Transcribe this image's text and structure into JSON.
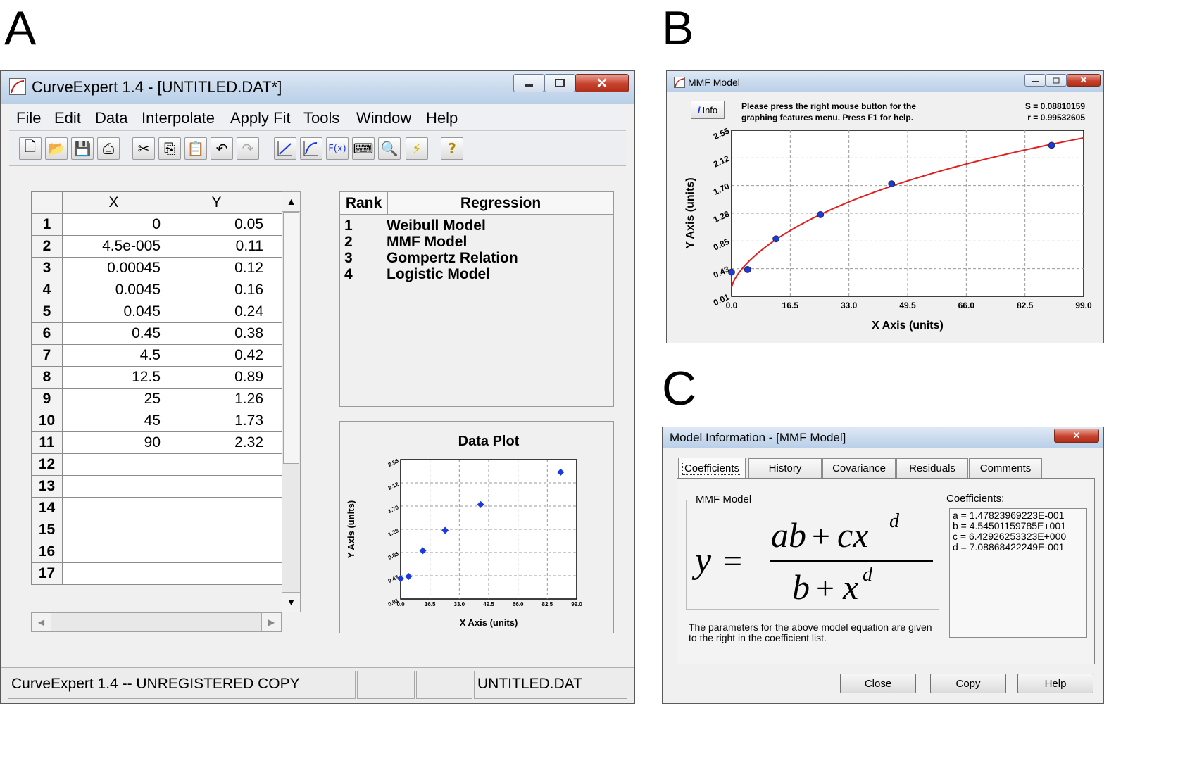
{
  "panels": {
    "a": "A",
    "b": "B",
    "c": "C"
  },
  "curveexpert": {
    "title": "CurveExpert 1.4 - [UNTITLED.DAT*]",
    "menu": [
      "File",
      "Edit",
      "Data",
      "Interpolate",
      "Apply Fit",
      "Tools",
      "Window",
      "Help"
    ],
    "toolbar": [
      "new-doc-icon",
      "open-folder-icon",
      "save-icon",
      "print-icon",
      "cut-icon",
      "copy-icon",
      "paste-icon",
      "undo-icon",
      "redo-icon",
      "linear-fit-icon",
      "curve-fit-icon",
      "function-icon",
      "keyboard-icon",
      "chart-zoom-icon",
      "lightning-icon",
      "help-icon"
    ],
    "grid": {
      "col_x": "X",
      "col_y": "Y",
      "rows": [
        {
          "n": "1",
          "x": "0",
          "y": "0.05"
        },
        {
          "n": "2",
          "x": "4.5e-005",
          "y": "0.11"
        },
        {
          "n": "3",
          "x": "0.00045",
          "y": "0.12"
        },
        {
          "n": "4",
          "x": "0.0045",
          "y": "0.16"
        },
        {
          "n": "5",
          "x": "0.045",
          "y": "0.24"
        },
        {
          "n": "6",
          "x": "0.45",
          "y": "0.38"
        },
        {
          "n": "7",
          "x": "4.5",
          "y": "0.42"
        },
        {
          "n": "8",
          "x": "12.5",
          "y": "0.89"
        },
        {
          "n": "9",
          "x": "25",
          "y": "1.26"
        },
        {
          "n": "10",
          "x": "45",
          "y": "1.73"
        },
        {
          "n": "11",
          "x": "90",
          "y": "2.32"
        },
        {
          "n": "12",
          "x": "",
          "y": ""
        },
        {
          "n": "13",
          "x": "",
          "y": ""
        },
        {
          "n": "14",
          "x": "",
          "y": ""
        },
        {
          "n": "15",
          "x": "",
          "y": ""
        },
        {
          "n": "16",
          "x": "",
          "y": ""
        },
        {
          "n": "17",
          "x": "",
          "y": ""
        }
      ]
    },
    "ranking": {
      "col_rank": "Rank",
      "col_regression": "Regression",
      "rows": [
        {
          "rank": "1",
          "name": "Weibull Model"
        },
        {
          "rank": "2",
          "name": "MMF Model"
        },
        {
          "rank": "3",
          "name": "Gompertz Relation"
        },
        {
          "rank": "4",
          "name": "Logistic Model"
        }
      ]
    },
    "status": {
      "left": "CurveExpert 1.4 -- UNREGISTERED COPY",
      "file": "UNTITLED.DAT"
    }
  },
  "mmf_window": {
    "title": "MMF Model",
    "info_button": "Info",
    "hint": "Please press the right mouse button for the graphing features menu.  Press F1 for help.",
    "s_stat": "S = 0.08810159",
    "r_stat": "r = 0.99532605"
  },
  "model_info": {
    "title": "Model Information - [MMF Model]",
    "tabs": [
      "Coefficients",
      "History",
      "Covariance",
      "Residuals",
      "Comments"
    ],
    "group_label": "MMF Model",
    "coef_header": "Coefficients:",
    "coefficients": [
      "a =  1.47823969223E-001",
      "b =  4.54501159785E+001",
      "c =  6.42926253323E+000",
      "d =  7.08868422249E-001"
    ],
    "description": "The parameters for the above model equation are given to the right in the coefficient list.",
    "buttons": {
      "close": "Close",
      "copy": "Copy",
      "help": "Help"
    }
  },
  "chart_data": [
    {
      "type": "scatter",
      "title": "Data Plot",
      "xlabel": "X Axis (units)",
      "ylabel": "Y Axis (units)",
      "xlim": [
        0.0,
        99.0
      ],
      "ylim": [
        0.01,
        2.55
      ],
      "x_ticks": [
        "0.0",
        "16.5",
        "33.0",
        "49.5",
        "66.0",
        "82.5",
        "99.0"
      ],
      "y_ticks": [
        "0.01",
        "0.43",
        "0.85",
        "1.28",
        "1.70",
        "2.12",
        "2.55"
      ],
      "grid": true,
      "point_color": "#1a3ae0",
      "series": [
        {
          "x": [
            0,
            4.5,
            12.5,
            25,
            45,
            90
          ],
          "y": [
            0.38,
            0.42,
            0.89,
            1.26,
            1.73,
            2.32
          ]
        }
      ]
    },
    {
      "type": "scatter",
      "title": "",
      "xlabel": "X Axis (units)",
      "ylabel": "Y Axis (units)",
      "xlim": [
        0.0,
        99.0
      ],
      "ylim": [
        0.01,
        2.55
      ],
      "x_ticks": [
        "0.0",
        "16.5",
        "33.0",
        "49.5",
        "66.0",
        "82.5",
        "99.0"
      ],
      "y_ticks": [
        "0.01",
        "0.43",
        "0.85",
        "1.28",
        "1.70",
        "2.12",
        "2.55"
      ],
      "grid": true,
      "point_color": "#1a3ae0",
      "fit_color": "#e02020",
      "fit_model": {
        "a": 0.147823969223,
        "b": 45.4501159785,
        "c": 6.42926253323,
        "d": 0.708868422249
      },
      "series": [
        {
          "x": [
            0,
            4.5,
            12.5,
            25,
            45,
            90
          ],
          "y": [
            0.38,
            0.42,
            0.89,
            1.26,
            1.73,
            2.32
          ]
        }
      ]
    }
  ]
}
